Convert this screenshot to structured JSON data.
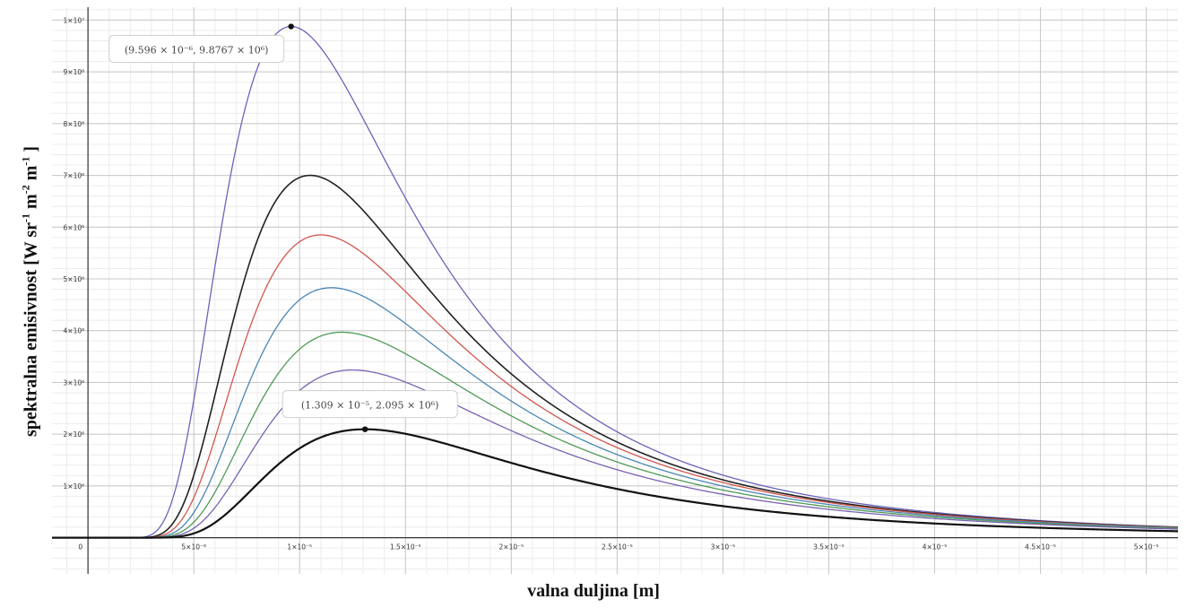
{
  "chart_data": {
    "type": "line",
    "xlabel": "valna duljina [m]",
    "ylabel": "spektralna emisivnost [W sr",
    "ylabel_parts": [
      "spektralna emisivnost [W sr",
      "-1",
      " m",
      "-2",
      " m",
      "-1",
      " ]"
    ],
    "xlim": [
      -1.7e-06,
      5.15e-05
    ],
    "ylim": [
      -700000,
      10250000
    ],
    "x_ticks": [
      0,
      5e-06,
      1e-05,
      1.5e-05,
      2e-05,
      2.5e-05,
      3e-05,
      3.5e-05,
      4e-05,
      4.5e-05,
      5e-05
    ],
    "x_tick_labels": [
      "0",
      "5×10⁻⁶",
      "1×10⁻⁵",
      "1.5×10⁻⁵",
      "2×10⁻⁵",
      "2.5×10⁻⁵",
      "3×10⁻⁵",
      "3.5×10⁻⁵",
      "4×10⁻⁵",
      "4.5×10⁻⁵",
      "5×10⁻⁵"
    ],
    "y_ticks": [
      1000000,
      2000000,
      3000000,
      4000000,
      5000000,
      6000000,
      7000000,
      8000000,
      9000000,
      10000000
    ],
    "y_tick_labels": [
      "1×10⁶",
      "2×10⁶",
      "3×10⁶",
      "4×10⁶",
      "5×10⁶",
      "6×10⁶",
      "7×10⁶",
      "8×10⁶",
      "9×10⁶",
      "1×10⁷"
    ],
    "grid": true,
    "series": [
      {
        "peak_x": 9.596e-06,
        "peak_y": 9876700,
        "color": "#6b64b8",
        "width": 1.3
      },
      {
        "peak_x": 1.05e-05,
        "peak_y": 7000000,
        "color": "#222222",
        "width": 1.6
      },
      {
        "peak_x": 1.1e-05,
        "peak_y": 5850000,
        "color": "#d2574f",
        "width": 1.3
      },
      {
        "peak_x": 1.15e-05,
        "peak_y": 4830000,
        "color": "#4b86b4",
        "width": 1.3
      },
      {
        "peak_x": 1.2e-05,
        "peak_y": 3970000,
        "color": "#4f9a55",
        "width": 1.3
      },
      {
        "peak_x": 1.25e-05,
        "peak_y": 3240000,
        "color": "#7a62b0",
        "width": 1.3
      },
      {
        "peak_x": 1.309e-05,
        "peak_y": 2095000,
        "color": "#111111",
        "width": 2.2
      }
    ],
    "annotations": [
      {
        "x": 9.596e-06,
        "y": 9876700,
        "label": "(9.596 × 10⁻⁶, 9.8767 × 10⁶)",
        "placement": "below-left"
      },
      {
        "x": 1.309e-05,
        "y": 2095000,
        "label": "(1.309 × 10⁻⁵, 2.095 × 10⁶)",
        "placement": "above-left"
      }
    ]
  }
}
